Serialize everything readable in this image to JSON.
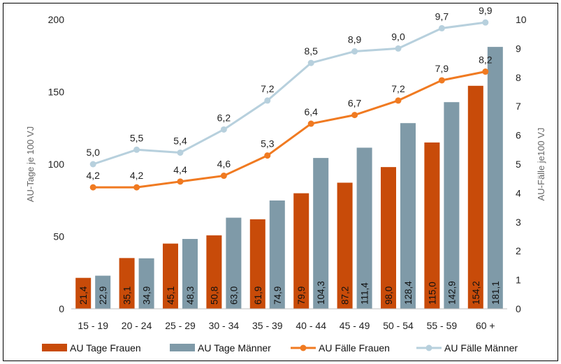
{
  "chart_data": {
    "type": "bar",
    "categories": [
      "15 - 19",
      "20 - 24",
      "25 - 29",
      "30 - 34",
      "35 - 39",
      "40 - 44",
      "45 - 49",
      "50 - 54",
      "55 - 59",
      "60 +"
    ],
    "ylabel_left": "AU-Tage je 100 VJ",
    "ylabel_right": "AU-Fälle je100 VJ",
    "ylim_left": [
      0,
      200
    ],
    "yticks_left": [
      0,
      50,
      100,
      150,
      200
    ],
    "ylim_right": [
      0,
      10
    ],
    "yticks_right": [
      0,
      1,
      2,
      3,
      4,
      5,
      6,
      7,
      8,
      9,
      10
    ],
    "legend_position": "bottom",
    "bar_series": [
      {
        "name": "AU Tage Frauen",
        "color": "#C84B09",
        "values": [
          21.4,
          35.1,
          45.1,
          50.8,
          61.9,
          79.9,
          87.2,
          98.0,
          115.0,
          154.2
        ],
        "labels": [
          "21,4",
          "35,1",
          "45,1",
          "50,8",
          "61,9",
          "79,9",
          "87,2",
          "98,0",
          "115,0",
          "154,2"
        ]
      },
      {
        "name": "AU Tage Männer",
        "color": "#7F9AA8",
        "values": [
          22.9,
          34.9,
          48.3,
          63.0,
          74.9,
          104.3,
          111.4,
          128.4,
          142.9,
          181.1
        ],
        "labels": [
          "22,9",
          "34,9",
          "48,3",
          "63,0",
          "74,9",
          "104,3",
          "111,4",
          "128,4",
          "142,9",
          "181,1"
        ]
      }
    ],
    "line_series": [
      {
        "name": "AU Fälle Frauen",
        "color": "#F07A21",
        "axis": "right",
        "values": [
          4.2,
          4.2,
          4.4,
          4.6,
          5.3,
          6.4,
          6.7,
          7.2,
          7.9,
          8.2
        ],
        "labels": [
          "4,2",
          "4,2",
          "4,4",
          "4,6",
          "5,3",
          "6,4",
          "6,7",
          "7,2",
          "7,9",
          "8,2"
        ]
      },
      {
        "name": "AU Fälle Männer",
        "color": "#B7D0DD",
        "axis": "right",
        "values": [
          5.0,
          5.5,
          5.4,
          6.2,
          7.2,
          8.5,
          8.9,
          9.0,
          9.7,
          9.9
        ],
        "labels": [
          "5,0",
          "5,5",
          "5,4",
          "6,2",
          "7,2",
          "8,5",
          "8,9",
          "9,0",
          "9,7",
          "9,9"
        ]
      }
    ]
  }
}
